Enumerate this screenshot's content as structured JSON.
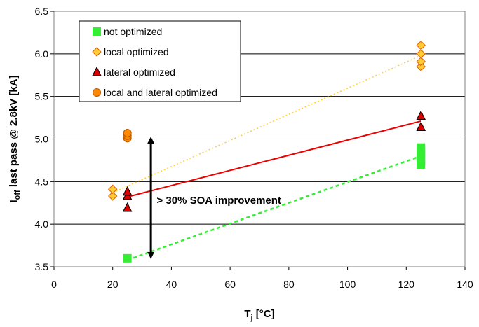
{
  "chart_data": {
    "type": "scatter",
    "xlabel": "T",
    "xlabel_sub": "j",
    "xlabel_unit": " [°C]",
    "ylabel_prefix": "I",
    "ylabel_sub": "off",
    "ylabel_rest": " last pass @ 2.8kV [kA]",
    "xlim": [
      0,
      140
    ],
    "ylim": [
      3.5,
      6.5
    ],
    "xticks": [
      0,
      20,
      40,
      60,
      80,
      100,
      120,
      140
    ],
    "yticks": [
      "3.5",
      "4.0",
      "4.5",
      "5.0",
      "5.5",
      "6.0",
      "6.5"
    ],
    "grid": "horizontal",
    "legend_position": "top-left",
    "series": [
      {
        "name": "not optimized",
        "marker": "square",
        "color": "#33ee33",
        "points": [
          [
            25,
            3.6
          ],
          [
            125,
            4.7
          ],
          [
            125,
            4.75
          ],
          [
            125,
            4.8
          ],
          [
            125,
            4.85
          ],
          [
            125,
            4.9
          ]
        ]
      },
      {
        "name": "local optimized",
        "marker": "diamond",
        "color": "#ffcc33",
        "points": [
          [
            20,
            4.33
          ],
          [
            20,
            4.41
          ],
          [
            125,
            5.85
          ],
          [
            125,
            5.91
          ],
          [
            125,
            6.0
          ],
          [
            125,
            6.1
          ]
        ]
      },
      {
        "name": "lateral optimized",
        "marker": "triangle",
        "color": "#dd0000",
        "points": [
          [
            25,
            4.19
          ],
          [
            25,
            4.33
          ],
          [
            25,
            4.38
          ],
          [
            125,
            5.14
          ],
          [
            125,
            5.27
          ]
        ]
      },
      {
        "name": "local and lateral optimized",
        "marker": "circle",
        "color": "#ff8800",
        "points": [
          [
            25,
            5.01
          ],
          [
            25,
            5.04
          ],
          [
            25,
            5.07
          ]
        ]
      }
    ],
    "trendlines": [
      {
        "series": "not optimized",
        "from": [
          25,
          3.58
        ],
        "to": [
          125,
          4.8
        ],
        "color": "#33ee33",
        "style": "dashed"
      },
      {
        "series": "local optimized",
        "from": [
          20,
          4.37
        ],
        "to": [
          125,
          5.98
        ],
        "color": "#ffcc33",
        "style": "dotted"
      },
      {
        "series": "lateral optimized",
        "from": [
          25,
          4.32
        ],
        "to": [
          125,
          5.21
        ],
        "color": "#ee0000",
        "style": "solid"
      }
    ],
    "annotation": {
      "text": "> 30% SOA improvement",
      "x": 35,
      "y": 4.28,
      "arrow_x": 33,
      "arrow_from": 3.6,
      "arrow_to": 5.02
    }
  }
}
